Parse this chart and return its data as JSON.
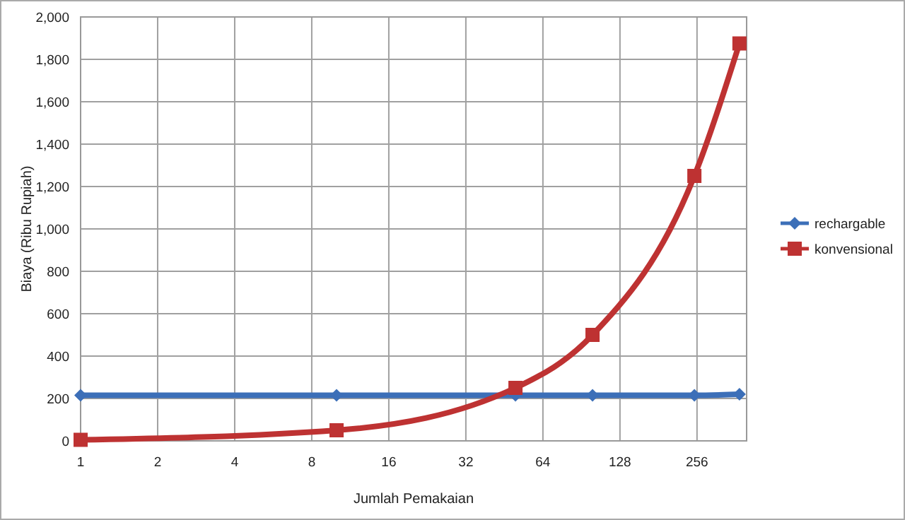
{
  "chart_data": {
    "type": "line",
    "xlabel": "Jumlah Pemakaian",
    "ylabel": "Biaya (Ribu Rupiah)",
    "x": [
      1,
      10,
      50,
      100,
      250,
      375
    ],
    "xlim": [
      1,
      400
    ],
    "xticks": [
      1,
      2,
      4,
      8,
      16,
      32,
      64,
      128,
      256
    ],
    "log": "x",
    "ylim": [
      0,
      2000
    ],
    "yticks": [
      {
        "value": 0,
        "label": "0"
      },
      {
        "value": 200,
        "label": "200"
      },
      {
        "value": 400,
        "label": "400"
      },
      {
        "value": 600,
        "label": "600"
      },
      {
        "value": 800,
        "label": "800"
      },
      {
        "value": 1000,
        "label": "1,000"
      },
      {
        "value": 1200,
        "label": "1,200"
      },
      {
        "value": 1400,
        "label": "1,400"
      },
      {
        "value": 1600,
        "label": "1,600"
      },
      {
        "value": 1800,
        "label": "1,800"
      },
      {
        "value": 2000,
        "label": "2,000"
      }
    ],
    "grid": true,
    "legend": "right",
    "series": [
      {
        "name": "rechargable",
        "color": "#3c6fb8",
        "marker": "diamond",
        "values": [
          215,
          215,
          215,
          215,
          215,
          220
        ]
      },
      {
        "name": "konvensional",
        "color": "#be3232",
        "marker": "square",
        "values": [
          5,
          50,
          250,
          500,
          1250,
          1875
        ]
      }
    ]
  }
}
